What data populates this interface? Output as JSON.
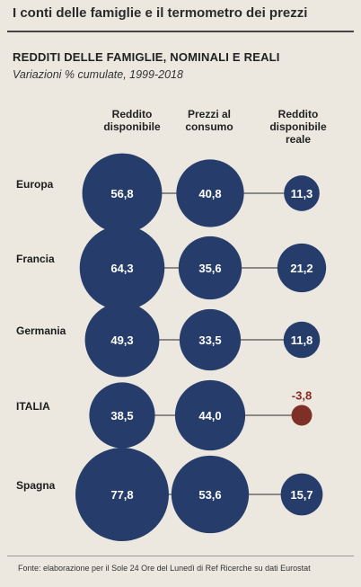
{
  "header": {
    "title": "I conti delle famiglie e il termometro dei prezzi",
    "subtitle": "REDDITI DELLE FAMIGLIE, NOMINALI E REALI",
    "note": "Variazioni % cumulate, 1999-2018"
  },
  "colors": {
    "bubble": "#263d6b",
    "negative": "#7e2f26",
    "negative_label": "#8a2a1f",
    "label_text": "#ffffff"
  },
  "chart_data": {
    "type": "bubble",
    "title": "REDDITI DELLE FAMIGLIE, NOMINALI E REALI",
    "subtitle": "Variazioni % cumulate, 1999-2018",
    "columns": [
      "Reddito\ndisponibile",
      "Prezzi al\nconsumo",
      "Reddito\ndisponibile\nreale"
    ],
    "categories": [
      "Europa",
      "Francia",
      "Germania",
      "ITALIA",
      "Spagna"
    ],
    "series": [
      {
        "name": "Reddito disponibile",
        "values": [
          56.8,
          64.3,
          49.3,
          38.5,
          77.8
        ],
        "labels": [
          "56,8",
          "64,3",
          "49,3",
          "38,5",
          "77,8"
        ]
      },
      {
        "name": "Prezzi al consumo",
        "values": [
          40.8,
          35.6,
          33.5,
          44.0,
          53.6
        ],
        "labels": [
          "40,8",
          "35,6",
          "33,5",
          "44,0",
          "53,6"
        ]
      },
      {
        "name": "Reddito disponibile reale",
        "values": [
          11.3,
          21.2,
          11.8,
          -3.8,
          15.7
        ],
        "labels": [
          "11,3",
          "21,2",
          "11,8",
          "-3,8",
          "15,7"
        ]
      }
    ]
  },
  "footer": {
    "source": "Fonte: elaborazione per il Sole 24 Ore del Lunedì di Ref Ricerche su dati Eurostat"
  }
}
